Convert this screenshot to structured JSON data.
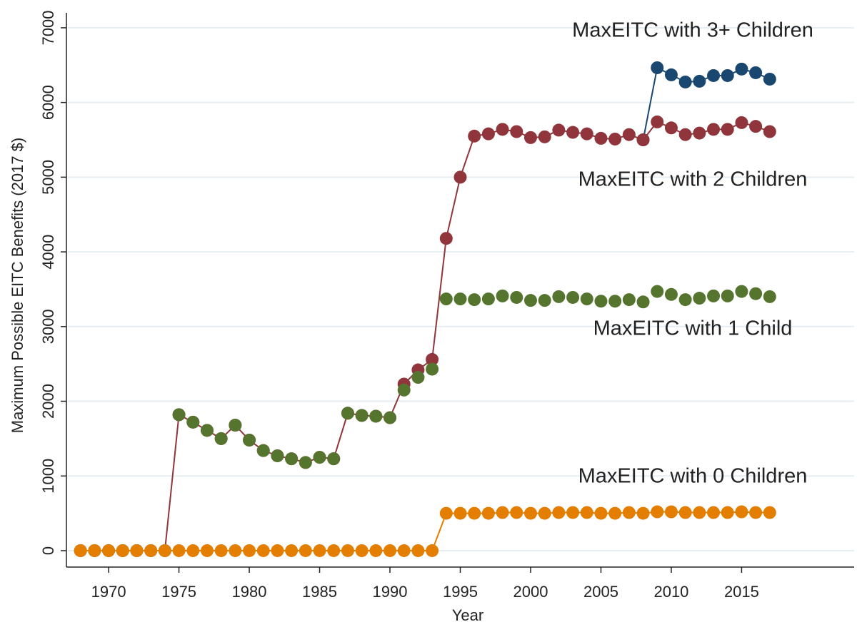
{
  "chart_data": {
    "type": "line",
    "xlabel": "Year",
    "ylabel": "Maximum Possible EITC Benefits (2017 $)",
    "x": [
      1968,
      1969,
      1970,
      1971,
      1972,
      1973,
      1974,
      1975,
      1976,
      1977,
      1978,
      1979,
      1980,
      1981,
      1982,
      1983,
      1984,
      1985,
      1986,
      1987,
      1988,
      1989,
      1990,
      1991,
      1992,
      1993,
      1994,
      1995,
      1996,
      1997,
      1998,
      1999,
      2000,
      2001,
      2002,
      2003,
      2004,
      2005,
      2006,
      2007,
      2008,
      2009,
      2010,
      2011,
      2012,
      2013,
      2014,
      2015,
      2016,
      2017
    ],
    "series": [
      {
        "name": "MaxEITC with 3+ Children",
        "color": "#1a476f",
        "line": true,
        "values": [
          null,
          null,
          null,
          null,
          null,
          null,
          null,
          null,
          null,
          null,
          null,
          null,
          null,
          null,
          null,
          null,
          null,
          null,
          null,
          null,
          null,
          null,
          null,
          null,
          null,
          null,
          null,
          null,
          null,
          null,
          null,
          null,
          null,
          null,
          null,
          null,
          null,
          null,
          null,
          null,
          5500,
          6465,
          6370,
          6274,
          6284,
          6360,
          6360,
          6447,
          6398,
          6312
        ]
      },
      {
        "name": "MaxEITC with 2 Children",
        "color": "#90353b",
        "line": true,
        "values": [
          0,
          0,
          0,
          0,
          0,
          0,
          0,
          1820,
          1720,
          1610,
          1500,
          1680,
          1480,
          1340,
          1270,
          1230,
          1180,
          1250,
          1230,
          1840,
          1810,
          1800,
          1780,
          2230,
          2420,
          2560,
          4180,
          5000,
          5550,
          5580,
          5640,
          5610,
          5530,
          5540,
          5630,
          5600,
          5580,
          5520,
          5510,
          5570,
          5500,
          5740,
          5660,
          5570,
          5590,
          5640,
          5640,
          5730,
          5680,
          5610
        ]
      },
      {
        "name": "MaxEITC with 1 Child",
        "color": "#55752f",
        "line": false,
        "values": [
          0,
          0,
          0,
          0,
          0,
          0,
          0,
          1820,
          1720,
          1610,
          1500,
          1680,
          1480,
          1340,
          1270,
          1230,
          1180,
          1250,
          1230,
          1840,
          1810,
          1800,
          1780,
          2150,
          2320,
          2430,
          3370,
          3370,
          3360,
          3370,
          3410,
          3390,
          3350,
          3350,
          3400,
          3390,
          3370,
          3340,
          3340,
          3360,
          3330,
          3470,
          3430,
          3360,
          3380,
          3410,
          3410,
          3470,
          3440,
          3400
        ]
      },
      {
        "name": "MaxEITC with 0 Children",
        "color": "#e37e00",
        "line": true,
        "values": [
          0,
          0,
          0,
          0,
          0,
          0,
          0,
          0,
          0,
          0,
          0,
          0,
          0,
          0,
          0,
          0,
          0,
          0,
          0,
          0,
          0,
          0,
          0,
          0,
          0,
          0,
          500,
          500,
          500,
          500,
          510,
          510,
          500,
          500,
          510,
          510,
          510,
          500,
          500,
          510,
          500,
          520,
          520,
          510,
          510,
          510,
          510,
          520,
          510,
          510
        ]
      }
    ],
    "xlim": [
      1967,
      2023
    ],
    "xticks": [
      1970,
      1975,
      1980,
      1985,
      1990,
      1995,
      2000,
      2005,
      2010,
      2015
    ],
    "ylim": [
      -220,
      7200
    ],
    "yticks": [
      0,
      1000,
      2000,
      3000,
      4000,
      5000,
      6000,
      7000
    ],
    "grid": true
  }
}
